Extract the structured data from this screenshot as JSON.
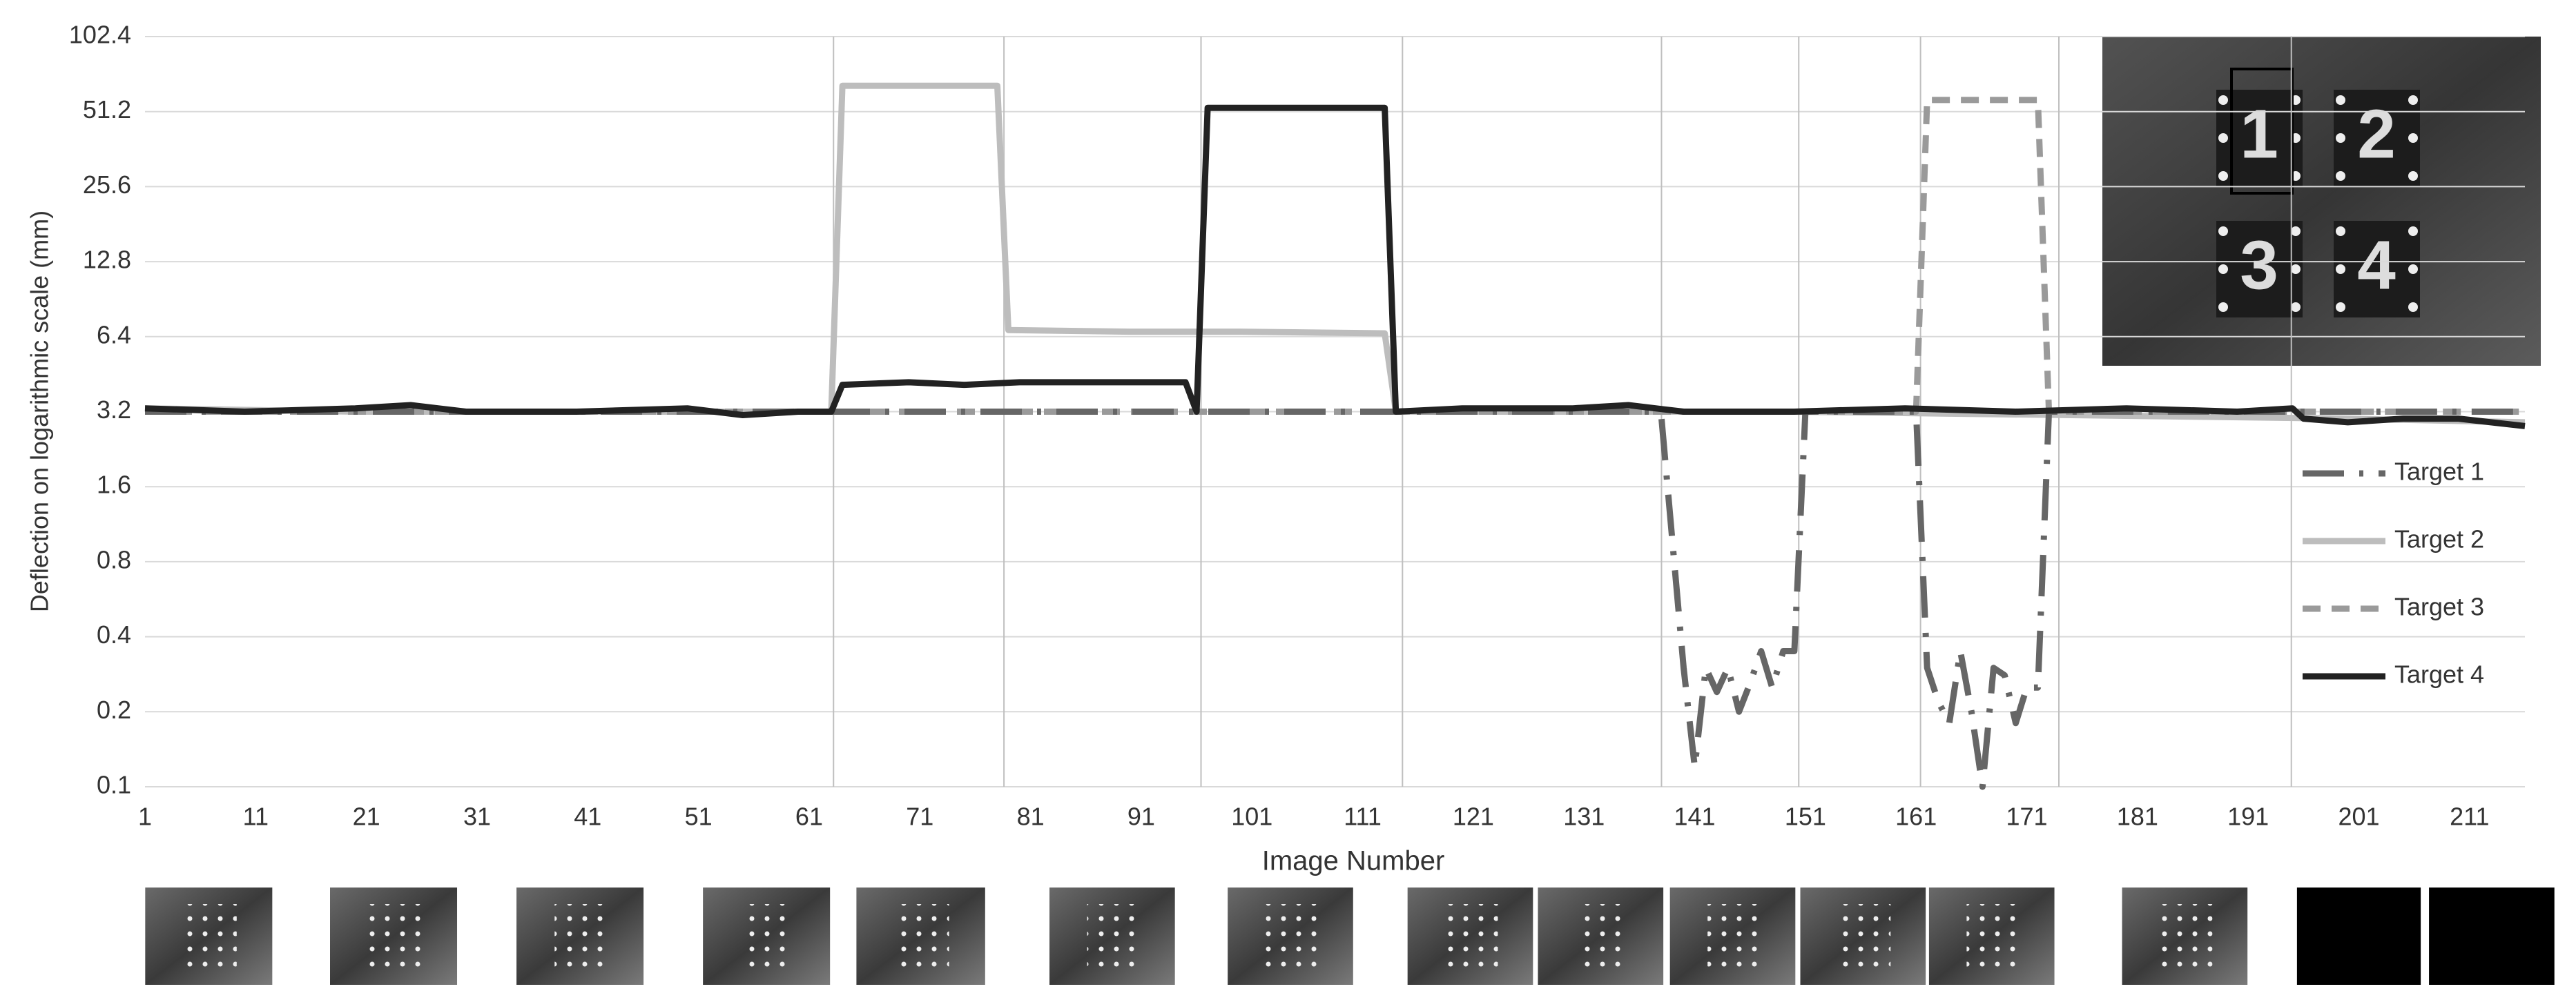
{
  "chart_data": {
    "type": "line",
    "x_label": "Image Number",
    "y_label": "Deflection on logarithmic scale (mm)",
    "yscale": "log",
    "ylim": [
      0.1,
      102.4
    ],
    "yticks": [
      0.1,
      0.2,
      0.4,
      0.8,
      1.6,
      3.2,
      6.4,
      12.8,
      25.6,
      51.2,
      102.4
    ],
    "xlim": [
      1,
      216
    ],
    "xticks": [
      1,
      11,
      21,
      31,
      41,
      51,
      61,
      71,
      81,
      91,
      101,
      111,
      121,
      131,
      141,
      151,
      161,
      171,
      181,
      191,
      201,
      211
    ],
    "grid": true,
    "separators": [
      63.2,
      78.6,
      96.4,
      114.6,
      138,
      150.4,
      161.4,
      173.9,
      194.9
    ],
    "legend": "right",
    "inset_labels": [
      "1",
      "2",
      "3",
      "4"
    ],
    "series": [
      {
        "name": "Target 2",
        "color": "#bdbdbd",
        "dash": "solid",
        "x": [
          1,
          20,
          40,
          63,
          64,
          78,
          79,
          90,
          100,
          113,
          114,
          150,
          200,
          216
        ],
        "values": [
          3.3,
          3.2,
          3.2,
          3.2,
          65,
          65,
          6.8,
          6.7,
          6.7,
          6.6,
          3.2,
          3.2,
          3.0,
          2.9
        ]
      },
      {
        "name": "Target 3",
        "color": "#9a9a9a",
        "dash": "short",
        "x": [
          1,
          63,
          70,
          80,
          96,
          114,
          161,
          162,
          172,
          173,
          216
        ],
        "values": [
          3.2,
          3.2,
          3.2,
          3.2,
          3.2,
          3.2,
          3.2,
          57,
          57,
          3.2,
          3.2
        ]
      },
      {
        "name": "Target 1",
        "color": "#666666",
        "dash": "long",
        "x": [
          1,
          63,
          96,
          137,
          138,
          140,
          141,
          142,
          143,
          144,
          145,
          146,
          147,
          148,
          149,
          150,
          151,
          161,
          162,
          163,
          164,
          165,
          166,
          167,
          168,
          169,
          170,
          171,
          172,
          173,
          216
        ],
        "values": [
          3.2,
          3.2,
          3.2,
          3.2,
          3.0,
          0.3,
          0.12,
          0.3,
          0.24,
          0.3,
          0.2,
          0.26,
          0.35,
          0.25,
          0.35,
          0.35,
          3.2,
          3.2,
          0.3,
          0.22,
          0.18,
          0.35,
          0.2,
          0.1,
          0.3,
          0.28,
          0.18,
          0.25,
          0.25,
          3.2,
          3.2
        ]
      },
      {
        "name": "Target 4",
        "color": "#222222",
        "dash": "solid",
        "x": [
          1,
          10,
          20,
          25,
          30,
          40,
          50,
          55,
          60,
          63,
          64,
          70,
          75,
          80,
          90,
          95,
          96,
          97,
          113,
          114,
          120,
          130,
          135,
          140,
          150,
          160,
          170,
          180,
          190,
          195,
          196,
          200,
          205,
          210,
          216
        ],
        "values": [
          3.3,
          3.2,
          3.3,
          3.4,
          3.2,
          3.2,
          3.3,
          3.1,
          3.2,
          3.2,
          4.1,
          4.2,
          4.1,
          4.2,
          4.2,
          4.2,
          3.2,
          53,
          53,
          3.2,
          3.3,
          3.3,
          3.4,
          3.2,
          3.2,
          3.3,
          3.2,
          3.3,
          3.2,
          3.3,
          3.0,
          2.9,
          3.0,
          3.0,
          2.8
        ]
      }
    ]
  }
}
